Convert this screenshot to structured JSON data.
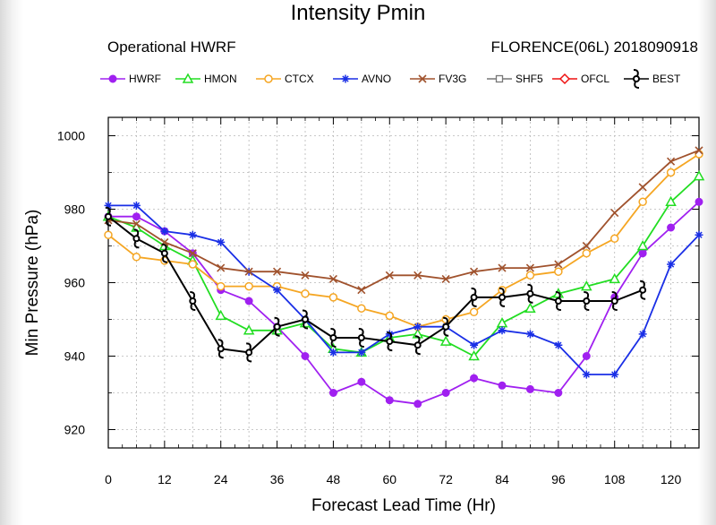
{
  "header": {
    "title": "Intensity Pmin",
    "subtitle_left": "Operational HWRF",
    "subtitle_right": "FLORENCE(06L) 2018090918"
  },
  "chart_data": {
    "type": "line",
    "title": "Intensity Pmin",
    "xlabel": "Forecast Lead Time (Hr)",
    "ylabel": "Min Pressure (hPa)",
    "xlim": [
      0,
      126
    ],
    "ylim": [
      915,
      1005
    ],
    "x_ticks": [
      0,
      12,
      24,
      36,
      48,
      60,
      72,
      84,
      96,
      108,
      120
    ],
    "y_ticks": [
      920,
      940,
      960,
      980,
      1000
    ],
    "grid": true,
    "legend_position": "top",
    "series": [
      {
        "name": "HWRF",
        "color": "#a020f0",
        "marker": "circle",
        "x": [
          0,
          6,
          12,
          18,
          24,
          30,
          36,
          42,
          48,
          54,
          60,
          66,
          72,
          78,
          84,
          90,
          96,
          102,
          108,
          114,
          120,
          126
        ],
        "y": [
          978,
          978,
          974,
          968,
          958,
          955,
          948,
          940,
          930,
          933,
          928,
          927,
          930,
          934,
          932,
          931,
          930,
          940,
          956,
          968,
          975,
          982
        ]
      },
      {
        "name": "HMON",
        "color": "#22dd22",
        "marker": "triangle",
        "x": [
          0,
          6,
          12,
          18,
          24,
          30,
          36,
          42,
          48,
          54,
          60,
          66,
          72,
          78,
          84,
          90,
          96,
          102,
          108,
          114,
          120,
          126
        ],
        "y": [
          978,
          975,
          970,
          966,
          951,
          947,
          947,
          949,
          942,
          941,
          945,
          946,
          944,
          940,
          949,
          953,
          957,
          959,
          961,
          970,
          982,
          989
        ]
      },
      {
        "name": "CTCX",
        "color": "#f5a623",
        "marker": "circle-open",
        "x": [
          0,
          6,
          12,
          18,
          24,
          30,
          36,
          42,
          48,
          54,
          60,
          66,
          72,
          78,
          84,
          90,
          96,
          102,
          108,
          114,
          120,
          126
        ],
        "y": [
          973,
          967,
          966,
          965,
          959,
          959,
          959,
          957,
          956,
          953,
          951,
          948,
          950,
          952,
          958,
          962,
          963,
          968,
          972,
          982,
          990,
          995
        ]
      },
      {
        "name": "AVNO",
        "color": "#1a2fe6",
        "marker": "star",
        "x": [
          0,
          6,
          12,
          18,
          24,
          30,
          36,
          42,
          48,
          54,
          60,
          66,
          72,
          78,
          84,
          90,
          96,
          102,
          108,
          114,
          120,
          126
        ],
        "y": [
          981,
          981,
          974,
          973,
          971,
          963,
          958,
          950,
          941,
          941,
          946,
          948,
          948,
          943,
          947,
          946,
          943,
          935,
          935,
          946,
          965,
          973
        ]
      },
      {
        "name": "FV3G",
        "color": "#a0522d",
        "marker": "x",
        "x": [
          0,
          6,
          12,
          18,
          24,
          30,
          36,
          42,
          48,
          54,
          60,
          66,
          72,
          78,
          84,
          90,
          96,
          102,
          108,
          114,
          120,
          126
        ],
        "y": [
          977,
          976,
          971,
          968,
          964,
          963,
          963,
          962,
          961,
          958,
          962,
          962,
          961,
          963,
          964,
          964,
          965,
          970,
          979,
          986,
          993,
          996
        ]
      },
      {
        "name": "SHF5",
        "color": "#777777",
        "marker": "square",
        "x": [],
        "y": []
      },
      {
        "name": "OFCL",
        "color": "#ee1111",
        "marker": "diamond",
        "x": [],
        "y": []
      },
      {
        "name": "BEST",
        "color": "#000000",
        "marker": "hurricane",
        "x": [
          0,
          6,
          12,
          18,
          24,
          30,
          36,
          42,
          48,
          54,
          60,
          66,
          72,
          78,
          84,
          90,
          96,
          102,
          108,
          114
        ],
        "y": [
          978,
          972,
          968,
          955,
          942,
          941,
          948,
          950,
          945,
          945,
          944,
          943,
          948,
          956,
          956,
          957,
          955,
          955,
          955,
          958
        ]
      }
    ]
  }
}
